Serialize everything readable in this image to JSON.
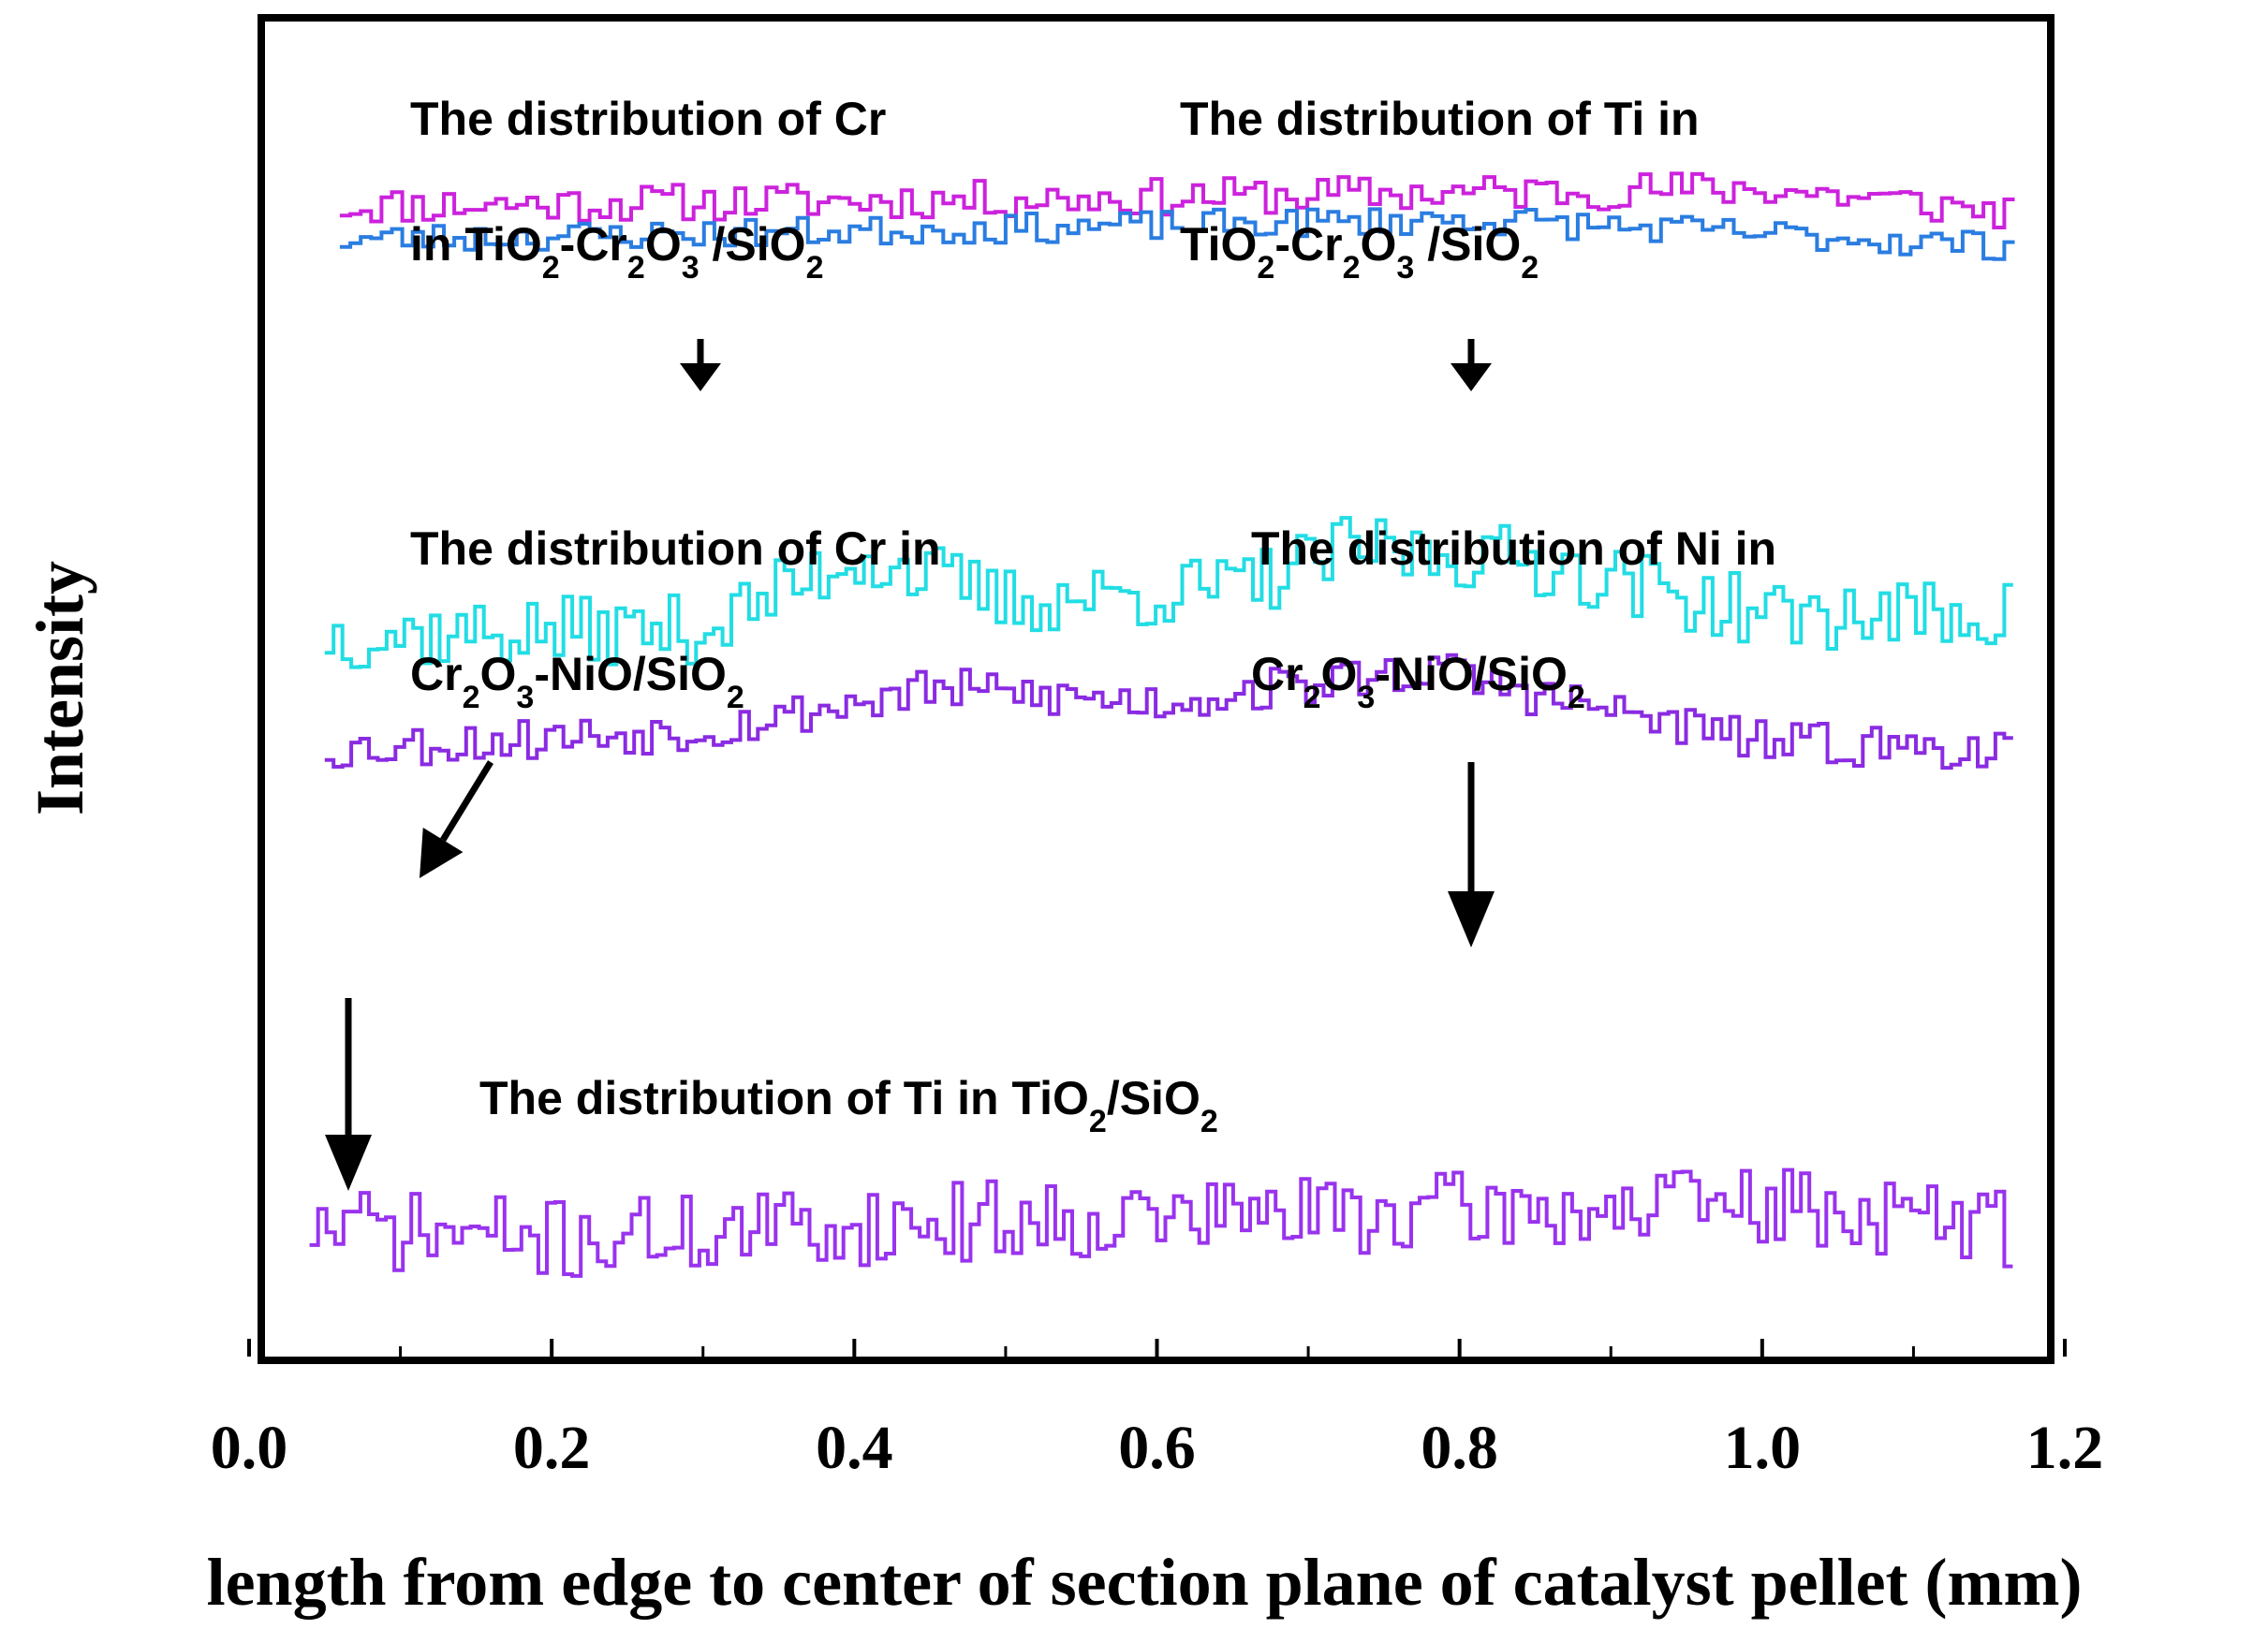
{
  "chart_data": {
    "type": "line",
    "xlabel": "length from edge to center of section plane of catalyst pellet (mm)",
    "ylabel": "Intensity",
    "xlim": [
      0.0,
      1.2
    ],
    "x_ticks": [
      "0.0",
      "0.2",
      "0.4",
      "0.6",
      "0.8",
      "1.0",
      "1.2"
    ],
    "y_ticks": [],
    "grid": false,
    "legend": "none",
    "annotations": [
      {
        "id": "a1",
        "lines": [
          [
            "The distribution of Cr"
          ],
          [
            "in TiO",
            {
              "sub": "2"
            },
            "-Cr",
            {
              "sub": "2"
            },
            "O",
            {
              "sub": "3"
            },
            " /SiO",
            {
              "sub": "2"
            }
          ]
        ]
      },
      {
        "id": "a2",
        "lines": [
          [
            "The distribution of Ti in"
          ],
          [
            "TiO",
            {
              "sub": "2"
            },
            "-Cr",
            {
              "sub": "2"
            },
            "O",
            {
              "sub": "3"
            },
            " /SiO",
            {
              "sub": "2"
            }
          ]
        ]
      },
      {
        "id": "a3",
        "lines": [
          [
            "The distribution of Cr in"
          ],
          [
            "Cr",
            {
              "sub": "2"
            },
            "O",
            {
              "sub": "3"
            },
            "-NiO/SiO",
            {
              "sub": "2"
            }
          ]
        ]
      },
      {
        "id": "a4",
        "lines": [
          [
            "The distribution of Ni in"
          ],
          [
            "Cr",
            {
              "sub": "2"
            },
            "O",
            {
              "sub": "3"
            },
            "-NiO/SiO",
            {
              "sub": "2"
            }
          ]
        ]
      },
      {
        "id": "a5",
        "lines": [
          [
            "The distribution of Ti in TiO",
            {
              "sub": "2"
            },
            "/SiO",
            {
              "sub": "2"
            }
          ]
        ]
      }
    ],
    "series": [
      {
        "key": "s1",
        "color": "#cc22dd",
        "x_start": 0.06,
        "x_end": 1.16,
        "n": 160,
        "base": 0.865,
        "amp": 0.014,
        "trend": [
          [
            0.06,
            -0.005
          ],
          [
            0.5,
            0.0
          ],
          [
            1.0,
            0.008
          ],
          [
            1.16,
            -0.01
          ]
        ],
        "seed": 11
      },
      {
        "key": "s2",
        "color": "#2a7de1",
        "x_start": 0.06,
        "x_end": 1.16,
        "n": 160,
        "base": 0.84,
        "amp": 0.011,
        "trend": [
          [
            0.06,
            -0.005
          ],
          [
            0.5,
            0.003
          ],
          [
            0.8,
            0.01
          ],
          [
            1.16,
            -0.01
          ]
        ],
        "seed": 23
      },
      {
        "key": "s3",
        "color": "#22dde4",
        "x_start": 0.05,
        "x_end": 1.16,
        "n": 190,
        "base": 0.54,
        "amp": 0.026,
        "trend": [
          [
            0.05,
            0.0
          ],
          [
            0.3,
            0.005
          ],
          [
            0.4,
            0.06
          ],
          [
            0.5,
            0.025
          ],
          [
            0.65,
            0.035
          ],
          [
            0.73,
            0.065
          ],
          [
            0.85,
            0.055
          ],
          [
            1.0,
            0.015
          ],
          [
            1.16,
            0.015
          ]
        ],
        "seed": 37
      },
      {
        "key": "s4",
        "color": "#8a2be2",
        "x_start": 0.05,
        "x_end": 1.16,
        "n": 190,
        "base": 0.455,
        "amp": 0.016,
        "trend": [
          [
            0.05,
            0.0
          ],
          [
            0.3,
            0.015
          ],
          [
            0.45,
            0.045
          ],
          [
            0.6,
            0.035
          ],
          [
            0.78,
            0.06
          ],
          [
            0.85,
            0.04
          ],
          [
            1.0,
            0.005
          ],
          [
            1.16,
            0.0
          ]
        ],
        "seed": 53
      },
      {
        "key": "s5",
        "color": "#9933ee",
        "x_start": 0.04,
        "x_end": 1.16,
        "n": 200,
        "base": 0.1,
        "amp": 0.03,
        "trend": [
          [
            0.04,
            0.0
          ],
          [
            0.2,
            -0.01
          ],
          [
            0.5,
            0.005
          ],
          [
            1.0,
            0.015
          ],
          [
            1.16,
            0.0
          ]
        ],
        "seed": 71
      }
    ]
  }
}
